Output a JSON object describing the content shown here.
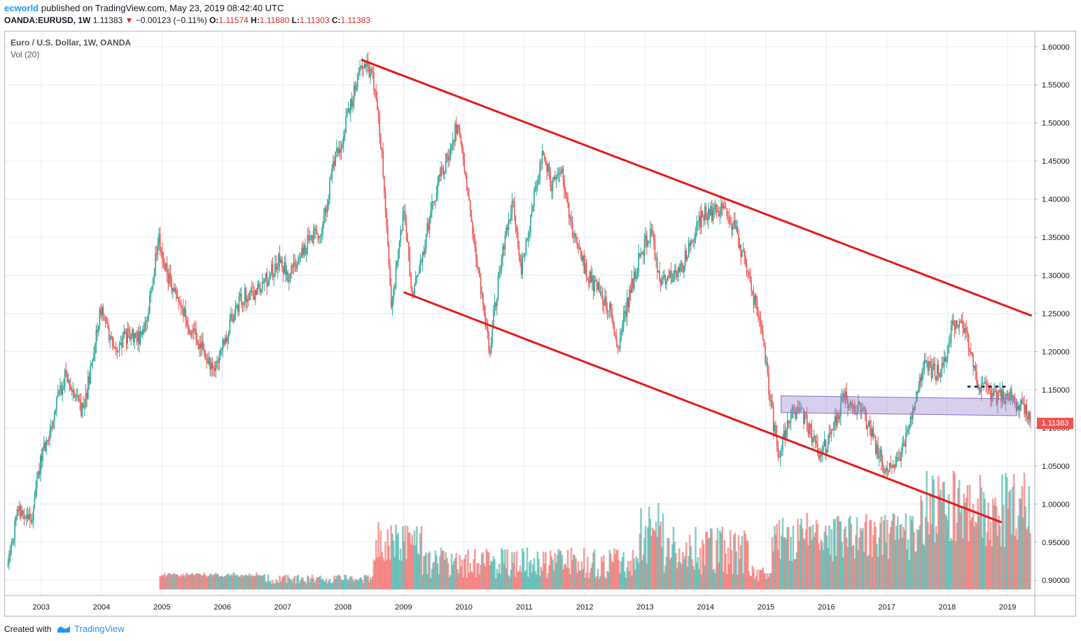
{
  "header": {
    "author": "ecworld",
    "published_text": "published on TradingView.com, May 23, 2019 08:42:40 UTC",
    "symbol": "OANDA:EURUSD, 1W",
    "last": "1.11383",
    "change": "−0.00123 (−0.11%)",
    "open_label": "O:",
    "open": "1.11574",
    "high_label": "H:",
    "high": "1.11880",
    "low_label": "L:",
    "low": "1.11303",
    "close_label": "C:",
    "close": "1.11383"
  },
  "legend": {
    "title": "Euro / U.S. Dollar, 1W, OANDA",
    "indicator": "Vol (20)"
  },
  "price_tag": "1.11383",
  "footer": {
    "created_with": "Created with",
    "brand": "TradingView"
  },
  "colors": {
    "up": "#26a69a",
    "down": "#ef5350",
    "trendline": "#e31b1b",
    "zone": "#9c88d0",
    "accent": "#2196f3"
  },
  "chart_data": {
    "type": "candlestick",
    "symbol": "EURUSD",
    "interval": "1W",
    "x_ticks": [
      "2003",
      "2004",
      "2005",
      "2006",
      "2007",
      "2008",
      "2009",
      "2010",
      "2011",
      "2012",
      "2013",
      "2014",
      "2015",
      "2016",
      "2017",
      "2018",
      "2019"
    ],
    "y_ticks": [
      "1.60000",
      "1.55000",
      "1.50000",
      "1.45000",
      "1.40000",
      "1.35000",
      "1.30000",
      "1.25000",
      "1.20000",
      "1.15000",
      "1.10000",
      "1.05000",
      "1.00000",
      "0.95000",
      "0.90000"
    ],
    "ylim": [
      0.88,
      1.62
    ],
    "xlim": [
      2002.4,
      2019.45
    ],
    "price_path": [
      [
        2002.45,
        0.92
      ],
      [
        2002.6,
        0.99
      ],
      [
        2002.85,
        0.98
      ],
      [
        2003.0,
        1.06
      ],
      [
        2003.4,
        1.17
      ],
      [
        2003.7,
        1.12
      ],
      [
        2003.9,
        1.22
      ],
      [
        2004.0,
        1.26
      ],
      [
        2004.2,
        1.2
      ],
      [
        2004.4,
        1.22
      ],
      [
        2004.7,
        1.22
      ],
      [
        2004.95,
        1.35
      ],
      [
        2005.05,
        1.31
      ],
      [
        2005.4,
        1.24
      ],
      [
        2005.85,
        1.18
      ],
      [
        2006.0,
        1.21
      ],
      [
        2006.3,
        1.27
      ],
      [
        2006.6,
        1.28
      ],
      [
        2006.95,
        1.32
      ],
      [
        2007.1,
        1.3
      ],
      [
        2007.45,
        1.35
      ],
      [
        2007.65,
        1.36
      ],
      [
        2007.85,
        1.45
      ],
      [
        2007.95,
        1.47
      ],
      [
        2008.3,
        1.58
      ],
      [
        2008.5,
        1.56
      ],
      [
        2008.65,
        1.45
      ],
      [
        2008.8,
        1.26
      ],
      [
        2009.0,
        1.39
      ],
      [
        2009.15,
        1.27
      ],
      [
        2009.5,
        1.4
      ],
      [
        2009.9,
        1.5
      ],
      [
        2010.1,
        1.38
      ],
      [
        2010.42,
        1.2
      ],
      [
        2010.6,
        1.31
      ],
      [
        2010.8,
        1.4
      ],
      [
        2010.95,
        1.31
      ],
      [
        2011.3,
        1.46
      ],
      [
        2011.45,
        1.42
      ],
      [
        2011.6,
        1.44
      ],
      [
        2011.85,
        1.34
      ],
      [
        2012.05,
        1.3
      ],
      [
        2012.4,
        1.26
      ],
      [
        2012.55,
        1.21
      ],
      [
        2012.85,
        1.31
      ],
      [
        2013.1,
        1.36
      ],
      [
        2013.25,
        1.29
      ],
      [
        2013.55,
        1.3
      ],
      [
        2013.95,
        1.38
      ],
      [
        2014.1,
        1.38
      ],
      [
        2014.3,
        1.39
      ],
      [
        2014.5,
        1.36
      ],
      [
        2014.9,
        1.24
      ],
      [
        2015.0,
        1.18
      ],
      [
        2015.2,
        1.06
      ],
      [
        2015.4,
        1.12
      ],
      [
        2015.6,
        1.12
      ],
      [
        2015.9,
        1.06
      ],
      [
        2016.3,
        1.14
      ],
      [
        2016.6,
        1.12
      ],
      [
        2016.9,
        1.06
      ],
      [
        2017.0,
        1.04
      ],
      [
        2017.25,
        1.07
      ],
      [
        2017.6,
        1.18
      ],
      [
        2017.9,
        1.17
      ],
      [
        2018.1,
        1.24
      ],
      [
        2018.3,
        1.23
      ],
      [
        2018.5,
        1.16
      ],
      [
        2018.8,
        1.14
      ],
      [
        2019.05,
        1.14
      ],
      [
        2019.2,
        1.13
      ],
      [
        2019.39,
        1.1138
      ]
    ],
    "trendlines": [
      {
        "from": [
          2008.3,
          1.583
        ],
        "to": [
          2019.4,
          1.247
        ]
      },
      {
        "from": [
          2009.0,
          1.278
        ],
        "to": [
          2018.9,
          0.976
        ]
      }
    ],
    "zone": {
      "x": [
        2015.25,
        2019.15
      ],
      "top": [
        1.142,
        1.138
      ],
      "bottom": [
        1.12,
        1.116
      ]
    },
    "dotted_level": {
      "x": [
        2018.35,
        2019.0
      ],
      "y": 1.154
    },
    "volume_panel": {
      "range_start": 2004.95,
      "note": "weekly volume, green up / red down"
    }
  }
}
